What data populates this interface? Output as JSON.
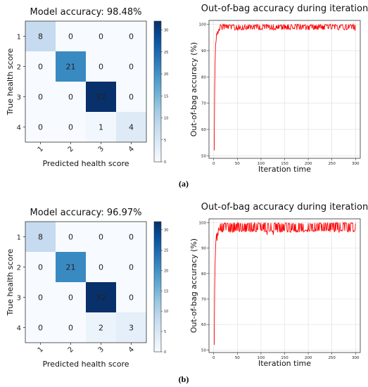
{
  "panels": [
    {
      "label": "(a)",
      "confusion": {
        "title": "Model accuracy: 98.48%",
        "xlabel": "Predicted health score",
        "ylabel": "True health score",
        "labels": [
          "1",
          "2",
          "3",
          "4"
        ],
        "matrix": [
          [
            8,
            0,
            0,
            0
          ],
          [
            0,
            21,
            0,
            0
          ],
          [
            0,
            0,
            32,
            0
          ],
          [
            0,
            0,
            1,
            4
          ]
        ],
        "colorbar_ticks": [
          0,
          5,
          10,
          15,
          20,
          25,
          30
        ],
        "cmap_max": 32
      },
      "oob": {
        "title": "Out-of-bag accuracy during iteration",
        "xlabel": "Iteration time",
        "ylabel": "Out-of-bag accuracy (%)",
        "xticks": [
          0,
          50,
          100,
          150,
          200,
          250,
          300
        ],
        "yticks": [
          50,
          60,
          70,
          80,
          90,
          100
        ],
        "color": "#ff0000"
      }
    },
    {
      "label": "(b)",
      "confusion": {
        "title": "Model accuracy: 96.97%",
        "xlabel": "Predicted health score",
        "ylabel": "True health score",
        "labels": [
          "1",
          "2",
          "3",
          "4"
        ],
        "matrix": [
          [
            8,
            0,
            0,
            0
          ],
          [
            0,
            21,
            0,
            0
          ],
          [
            0,
            0,
            32,
            0
          ],
          [
            0,
            0,
            2,
            3
          ]
        ],
        "colorbar_ticks": [
          0,
          5,
          10,
          15,
          20,
          25,
          30
        ],
        "cmap_max": 32
      },
      "oob": {
        "title": "Out-of-bag accuracy during iteration",
        "xlabel": "Iteration time",
        "ylabel": "Out-of-bag accuracy (%)",
        "xticks": [
          0,
          50,
          100,
          150,
          200,
          250,
          300
        ],
        "yticks": [
          50,
          60,
          70,
          80,
          90,
          100
        ],
        "color": "#ff0000"
      }
    }
  ],
  "chart_data": [
    {
      "type": "heatmap",
      "title": "Model accuracy: 98.48%",
      "xlabel": "Predicted health score",
      "ylabel": "True health score",
      "x": [
        "1",
        "2",
        "3",
        "4"
      ],
      "y": [
        "1",
        "2",
        "3",
        "4"
      ],
      "values": [
        [
          8,
          0,
          0,
          0
        ],
        [
          0,
          21,
          0,
          0
        ],
        [
          0,
          0,
          32,
          0
        ],
        [
          0,
          0,
          1,
          4
        ]
      ]
    },
    {
      "type": "line",
      "title": "Out-of-bag accuracy during iteration",
      "xlabel": "Iteration time",
      "ylabel": "Out-of-bag accuracy (%)",
      "xlim": [
        0,
        300
      ],
      "ylim": [
        50,
        100
      ],
      "x": [
        1,
        2,
        3,
        4,
        5,
        6,
        7,
        8,
        9,
        10,
        12,
        15,
        20,
        30,
        50,
        100,
        150,
        200,
        250,
        300
      ],
      "values": [
        52,
        75,
        86,
        92,
        94,
        96,
        95,
        97,
        96,
        98,
        97,
        98,
        98,
        98,
        98,
        98,
        98,
        98,
        98,
        98
      ]
    },
    {
      "type": "heatmap",
      "title": "Model accuracy: 96.97%",
      "xlabel": "Predicted health score",
      "ylabel": "True health score",
      "x": [
        "1",
        "2",
        "3",
        "4"
      ],
      "y": [
        "1",
        "2",
        "3",
        "4"
      ],
      "values": [
        [
          8,
          0,
          0,
          0
        ],
        [
          0,
          21,
          0,
          0
        ],
        [
          0,
          0,
          32,
          0
        ],
        [
          0,
          0,
          2,
          3
        ]
      ]
    },
    {
      "type": "line",
      "title": "Out-of-bag accuracy during iteration",
      "xlabel": "Iteration time",
      "ylabel": "Out-of-bag accuracy (%)",
      "xlim": [
        0,
        300
      ],
      "ylim": [
        50,
        100
      ],
      "x": [
        1,
        2,
        3,
        4,
        5,
        6,
        7,
        8,
        9,
        10,
        12,
        15,
        20,
        30,
        50,
        100,
        150,
        200,
        250,
        300
      ],
      "values": [
        52,
        74,
        84,
        90,
        93,
        95,
        94,
        96,
        95,
        97,
        96,
        97,
        97,
        97,
        97,
        97,
        97,
        97,
        97,
        97
      ]
    }
  ]
}
